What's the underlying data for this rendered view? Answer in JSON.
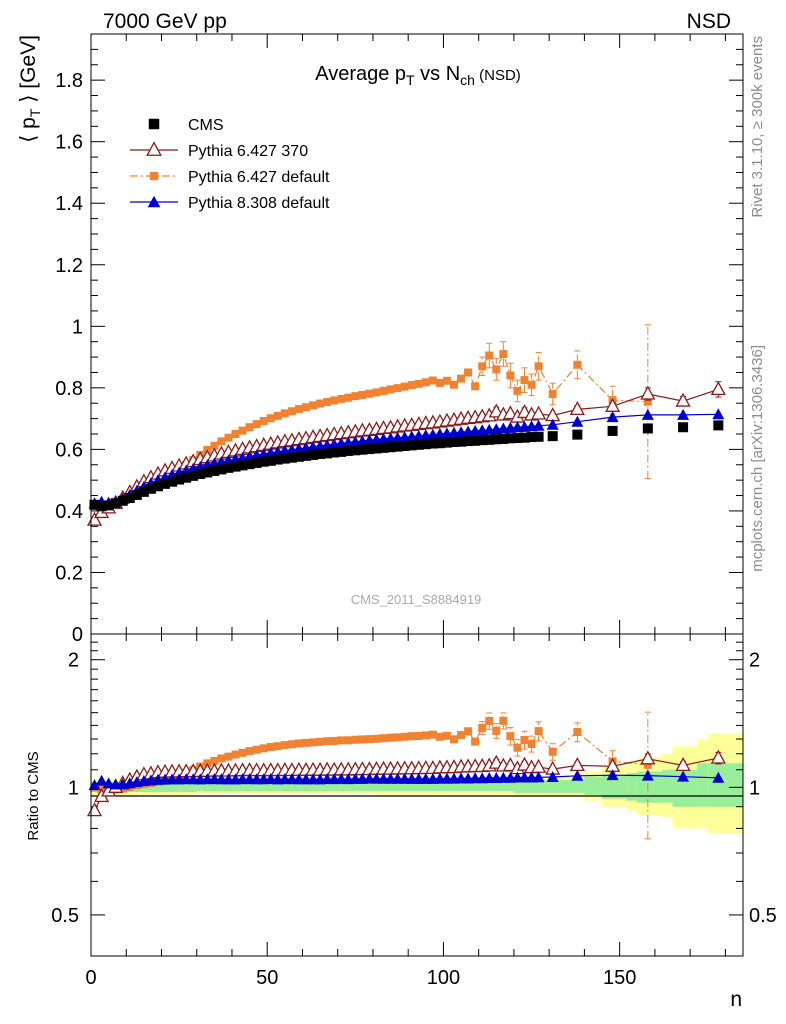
{
  "header": {
    "left": "7000 GeV pp",
    "right": "NSD"
  },
  "side_texts": {
    "rivet": "Rivet 3.1.10, ≥ 300k events",
    "mcplots": "mcplots.cern.ch [arXiv:1306.3436]"
  },
  "watermark": "CMS_2011_S8884919",
  "chart_data": [
    {
      "type": "scatter",
      "title_parts": [
        "Average p",
        "T",
        " vs N",
        "ch",
        " (NSD)"
      ],
      "ylabel_parts": [
        "⟨ p",
        "T",
        " ⟩ [GeV]"
      ],
      "xlabel": "n",
      "xlim": [
        0,
        185
      ],
      "ylim": [
        0,
        1.95
      ],
      "x_ticks": [
        0,
        50,
        100,
        150
      ],
      "y_ticks": [
        0,
        0.2,
        0.4,
        0.6,
        0.8,
        1,
        1.2,
        1.4,
        1.6,
        1.8
      ],
      "y_tick_labels": [
        "0",
        "0.2",
        "0.4",
        "0.6",
        "0.8",
        "1",
        "1.2",
        "1.4",
        "1.6",
        "1.8"
      ],
      "legend_position": "top-left",
      "series": [
        {
          "name": "CMS",
          "color": "#000000",
          "marker": "square",
          "x": [
            1,
            3,
            5,
            7,
            9,
            11,
            13,
            15,
            17,
            19,
            21,
            23,
            25,
            27,
            29,
            31,
            33,
            35,
            37,
            39,
            41,
            43,
            45,
            47,
            49,
            51,
            53,
            55,
            57,
            59,
            61,
            63,
            65,
            67,
            69,
            71,
            73,
            75,
            77,
            79,
            81,
            83,
            85,
            87,
            89,
            91,
            93,
            95,
            97,
            99,
            101,
            103,
            105,
            107,
            109,
            111,
            113,
            115,
            117,
            119,
            121,
            123,
            125,
            127,
            131,
            138,
            148,
            158,
            168,
            178
          ],
          "y": [
            0.42,
            0.415,
            0.418,
            0.425,
            0.433,
            0.442,
            0.452,
            0.462,
            0.472,
            0.48,
            0.488,
            0.495,
            0.502,
            0.508,
            0.514,
            0.52,
            0.525,
            0.53,
            0.535,
            0.54,
            0.544,
            0.548,
            0.552,
            0.556,
            0.56,
            0.563,
            0.567,
            0.57,
            0.573,
            0.576,
            0.579,
            0.582,
            0.585,
            0.587,
            0.59,
            0.592,
            0.595,
            0.597,
            0.599,
            0.601,
            0.603,
            0.605,
            0.607,
            0.609,
            0.611,
            0.613,
            0.615,
            0.617,
            0.619,
            0.62,
            0.622,
            0.624,
            0.625,
            0.627,
            0.628,
            0.63,
            0.631,
            0.633,
            0.634,
            0.636,
            0.637,
            0.638,
            0.64,
            0.641,
            0.643,
            0.648,
            0.66,
            0.668,
            0.672,
            0.678
          ]
        },
        {
          "name": "Pythia 6.427 370",
          "color": "#8b1a1a",
          "marker": "triangle-open",
          "x": [
            1,
            3,
            5,
            7,
            9,
            11,
            13,
            15,
            17,
            19,
            21,
            23,
            25,
            27,
            29,
            31,
            33,
            35,
            37,
            39,
            41,
            43,
            45,
            47,
            49,
            51,
            53,
            55,
            57,
            59,
            61,
            63,
            65,
            67,
            69,
            71,
            73,
            75,
            77,
            79,
            81,
            83,
            85,
            87,
            89,
            91,
            93,
            95,
            97,
            99,
            101,
            103,
            105,
            107,
            109,
            111,
            113,
            115,
            117,
            119,
            121,
            123,
            125,
            127,
            131,
            138,
            148,
            158,
            168,
            178
          ],
          "y": [
            0.37,
            0.395,
            0.41,
            0.425,
            0.442,
            0.46,
            0.478,
            0.495,
            0.508,
            0.52,
            0.53,
            0.538,
            0.546,
            0.553,
            0.56,
            0.567,
            0.573,
            0.579,
            0.585,
            0.59,
            0.595,
            0.6,
            0.605,
            0.609,
            0.613,
            0.617,
            0.621,
            0.625,
            0.628,
            0.632,
            0.635,
            0.639,
            0.642,
            0.645,
            0.648,
            0.651,
            0.654,
            0.657,
            0.66,
            0.662,
            0.665,
            0.668,
            0.67,
            0.673,
            0.676,
            0.678,
            0.681,
            0.684,
            0.686,
            0.689,
            0.692,
            0.695,
            0.698,
            0.701,
            0.703,
            0.706,
            0.709,
            0.722,
            0.712,
            0.716,
            0.705,
            0.72,
            0.712,
            0.715,
            0.71,
            0.73,
            0.74,
            0.78,
            0.757,
            0.795
          ],
          "yerr": [
            0,
            0,
            0,
            0,
            0,
            0,
            0,
            0,
            0,
            0,
            0,
            0,
            0,
            0,
            0,
            0,
            0,
            0,
            0,
            0,
            0,
            0,
            0,
            0,
            0,
            0,
            0,
            0,
            0,
            0,
            0,
            0,
            0,
            0,
            0,
            0,
            0,
            0,
            0,
            0,
            0,
            0,
            0,
            0,
            0,
            0,
            0,
            0,
            0,
            0,
            0,
            0,
            0,
            0,
            0,
            0,
            0,
            0.015,
            0,
            0,
            0,
            0.015,
            0,
            0,
            0,
            0.012,
            0.012,
            0.02,
            0.015,
            0.025
          ]
        },
        {
          "name": "Pythia 6.427 default",
          "color": "#f08232",
          "marker": "square-small",
          "x": [
            1,
            3,
            5,
            7,
            9,
            11,
            13,
            15,
            17,
            19,
            21,
            23,
            25,
            27,
            29,
            31,
            33,
            35,
            37,
            39,
            41,
            43,
            45,
            47,
            49,
            51,
            53,
            55,
            57,
            59,
            61,
            63,
            65,
            67,
            69,
            71,
            73,
            75,
            77,
            79,
            81,
            83,
            85,
            87,
            89,
            91,
            93,
            95,
            97,
            99,
            101,
            103,
            105,
            107,
            109,
            111,
            113,
            115,
            117,
            119,
            121,
            123,
            125,
            127,
            131,
            138,
            148,
            158
          ],
          "y": [
            0.42,
            0.41,
            0.415,
            0.42,
            0.43,
            0.443,
            0.457,
            0.47,
            0.483,
            0.495,
            0.507,
            0.52,
            0.535,
            0.55,
            0.565,
            0.582,
            0.598,
            0.612,
            0.626,
            0.638,
            0.65,
            0.661,
            0.672,
            0.682,
            0.692,
            0.701,
            0.709,
            0.717,
            0.724,
            0.731,
            0.737,
            0.743,
            0.749,
            0.754,
            0.759,
            0.764,
            0.768,
            0.773,
            0.777,
            0.781,
            0.785,
            0.79,
            0.795,
            0.799,
            0.804,
            0.809,
            0.813,
            0.818,
            0.824,
            0.816,
            0.823,
            0.81,
            0.83,
            0.85,
            0.805,
            0.87,
            0.905,
            0.86,
            0.91,
            0.84,
            0.79,
            0.825,
            0.81,
            0.87,
            0.78,
            0.875,
            0.76,
            0.755
          ],
          "yerr": [
            0,
            0,
            0,
            0,
            0,
            0,
            0,
            0,
            0,
            0,
            0,
            0,
            0,
            0,
            0,
            0,
            0,
            0,
            0,
            0,
            0,
            0,
            0,
            0,
            0,
            0,
            0,
            0,
            0,
            0,
            0,
            0,
            0,
            0,
            0,
            0,
            0,
            0,
            0,
            0,
            0,
            0,
            0,
            0,
            0,
            0,
            0,
            0,
            0,
            0,
            0,
            0,
            0,
            0,
            0,
            0.03,
            0.04,
            0.035,
            0.04,
            0.04,
            0.035,
            0.04,
            0.035,
            0.045,
            0.035,
            0.045,
            0.045,
            0.25
          ]
        },
        {
          "name": "Pythia 8.308 default",
          "color": "#0000cc",
          "marker": "triangle-filled",
          "x": [
            1,
            3,
            5,
            7,
            9,
            11,
            13,
            15,
            17,
            19,
            21,
            23,
            25,
            27,
            29,
            31,
            33,
            35,
            37,
            39,
            41,
            43,
            45,
            47,
            49,
            51,
            53,
            55,
            57,
            59,
            61,
            63,
            65,
            67,
            69,
            71,
            73,
            75,
            77,
            79,
            81,
            83,
            85,
            87,
            89,
            91,
            93,
            95,
            97,
            99,
            101,
            103,
            105,
            107,
            109,
            111,
            113,
            115,
            117,
            119,
            121,
            123,
            125,
            127,
            131,
            138,
            148,
            158,
            168,
            178
          ],
          "y": [
            0.425,
            0.43,
            0.427,
            0.432,
            0.44,
            0.452,
            0.465,
            0.478,
            0.49,
            0.5,
            0.509,
            0.517,
            0.524,
            0.531,
            0.537,
            0.543,
            0.549,
            0.554,
            0.559,
            0.564,
            0.568,
            0.573,
            0.577,
            0.581,
            0.585,
            0.589,
            0.592,
            0.596,
            0.599,
            0.602,
            0.605,
            0.608,
            0.611,
            0.614,
            0.617,
            0.62,
            0.622,
            0.625,
            0.627,
            0.63,
            0.632,
            0.634,
            0.636,
            0.638,
            0.64,
            0.642,
            0.644,
            0.646,
            0.648,
            0.65,
            0.652,
            0.654,
            0.656,
            0.658,
            0.66,
            0.662,
            0.664,
            0.666,
            0.668,
            0.67,
            0.672,
            0.673,
            0.675,
            0.677,
            0.68,
            0.69,
            0.705,
            0.712,
            0.712,
            0.714
          ]
        }
      ],
      "legend": [
        {
          "label": "CMS",
          "marker": "square",
          "color": "#000000",
          "line": "none"
        },
        {
          "label": "Pythia 6.427 370",
          "marker": "triangle-open",
          "color": "#8b1a1a",
          "line": "solid"
        },
        {
          "label": "Pythia 6.427 default",
          "marker": "square-small",
          "color": "#f08232",
          "line": "dashdot"
        },
        {
          "label": "Pythia 8.308 default",
          "marker": "triangle-filled",
          "color": "#0000cc",
          "line": "solid"
        }
      ]
    },
    {
      "type": "scatter",
      "ylabel": "Ratio to CMS",
      "xlabel": "n",
      "xlim": [
        0,
        185
      ],
      "ylim": [
        0.4,
        2.3
      ],
      "y_scale": "log",
      "x_ticks": [
        0,
        50,
        100,
        150
      ],
      "x_tick_labels": [
        "0",
        "50",
        "100",
        "150"
      ],
      "y_ticks": [
        0.5,
        1,
        2
      ],
      "y_tick_labels": [
        "0.5",
        "1",
        "2"
      ],
      "reference_line": 1,
      "uncertainty_bands": {
        "inner_color": "#99ee99",
        "outer_color": "#ffff99",
        "x_edges": [
          0,
          10,
          20,
          30,
          40,
          60,
          80,
          100,
          120,
          140,
          145,
          152,
          155,
          162,
          165,
          172,
          175,
          185
        ],
        "inner_low": [
          0.975,
          0.975,
          0.975,
          0.98,
          0.98,
          0.98,
          0.98,
          0.98,
          0.97,
          0.96,
          0.94,
          0.93,
          0.92,
          0.92,
          0.9,
          0.9,
          0.9
        ],
        "inner_high": [
          1.03,
          1.025,
          1.025,
          1.02,
          1.02,
          1.02,
          1.025,
          1.03,
          1.04,
          1.06,
          1.07,
          1.08,
          1.09,
          1.1,
          1.1,
          1.14,
          1.14
        ],
        "outer_low": [
          0.955,
          0.96,
          0.96,
          0.965,
          0.965,
          0.965,
          0.96,
          0.96,
          0.95,
          0.93,
          0.9,
          0.88,
          0.86,
          0.85,
          0.8,
          0.8,
          0.78
        ],
        "outer_high": [
          1.05,
          1.045,
          1.045,
          1.04,
          1.04,
          1.04,
          1.045,
          1.05,
          1.06,
          1.09,
          1.12,
          1.15,
          1.18,
          1.2,
          1.25,
          1.3,
          1.34
        ]
      }
    }
  ]
}
